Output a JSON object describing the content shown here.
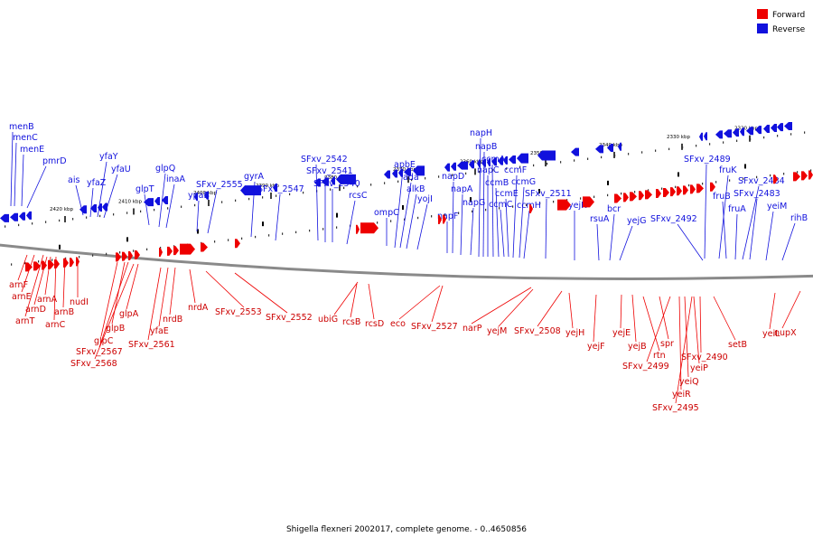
{
  "legend": {
    "forward": {
      "label": "Forward",
      "color": "#ee0000"
    },
    "reverse": {
      "label": "Reverse",
      "color": "#1111dd"
    }
  },
  "caption": "Shigella flexneri 2002017, complete genome. - 0..4650856",
  "ticks": [
    {
      "label": "2420 kbp"
    },
    {
      "label": "2410 kbp"
    },
    {
      "label": "2400 kbp"
    },
    {
      "label": "2390 kbp"
    },
    {
      "label": "2380 kbp"
    },
    {
      "label": "2370 kbp"
    },
    {
      "label": "2360 kbp"
    },
    {
      "label": "2350 kbp"
    },
    {
      "label": "2340 kbp"
    },
    {
      "label": "2330 kbp"
    },
    {
      "label": "2320 kbp"
    }
  ],
  "reverse_genes": [
    "menB",
    "menC",
    "menE",
    "pmrD",
    "ais",
    "yfaZ",
    "yfaY",
    "yfaU",
    "glpT",
    "glpQ",
    "inaA",
    "ypaB",
    "SFxv_2555",
    "gyrA",
    "SFxv_2547",
    "SFxv_2542",
    "SFxv_2541",
    "SFxv_2540",
    "rcsC",
    "ompC",
    "apbE",
    "ada",
    "alkB",
    "yojI",
    "napF",
    "napD",
    "napA",
    "napG",
    "napH",
    "napB",
    "napC",
    "ccmA",
    "ccmB",
    "ccmC",
    "ccmE",
    "ccmF",
    "ccmG",
    "ccmH",
    "SFxv_2511",
    "yejK",
    "rsuA",
    "bcr",
    "yejG",
    "SFxv_2492",
    "SFxv_2489",
    "fruK",
    "fruB",
    "fruA",
    "SFxv_2484",
    "SFxv_2483",
    "yeiM",
    "rihB"
  ],
  "forward_genes": [
    "arnF",
    "arnE",
    "arnT",
    "arnD",
    "arnA",
    "arnC",
    "arnB",
    "nudI",
    "glpC",
    "glpB",
    "SFxv_2567",
    "SFxv_2568",
    "glpA",
    "SFxv_2561",
    "yfaE",
    "nrdB",
    "nrdA",
    "SFxv_2553",
    "SFxv_2552",
    "ubiG",
    "rcsB",
    "rcsD",
    "eco",
    "SFxv_2527",
    "narP",
    "yejM",
    "SFxv_2508",
    "yejH",
    "yejF",
    "yejE",
    "yejB",
    "rtn",
    "spr",
    "SFxv_2499",
    "yeiR",
    "yeiQ",
    "SFxv_2495",
    "yeiP",
    "SFxv_2490",
    "setB",
    "yeiL",
    "nupX"
  ]
}
